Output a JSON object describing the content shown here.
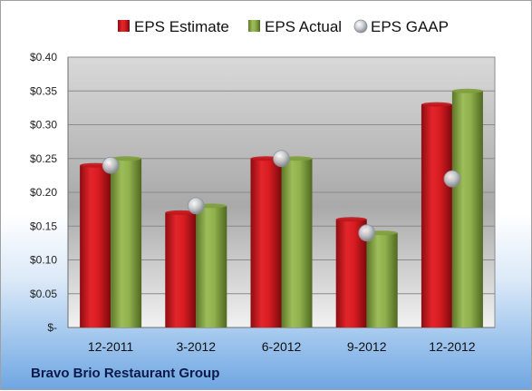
{
  "company": "Bravo Brio Restaurant Group",
  "chart_data": {
    "type": "bar",
    "categories": [
      "12-2011",
      "3-2012",
      "6-2012",
      "9-2012",
      "12-2012"
    ],
    "series": [
      {
        "name": "EPS Estimate",
        "kind": "bar",
        "color": "#c0151a",
        "values": [
          0.24,
          0.17,
          0.25,
          0.16,
          0.33
        ]
      },
      {
        "name": "EPS Actual",
        "kind": "bar",
        "color": "#7e9e3c",
        "values": [
          0.25,
          0.18,
          0.25,
          0.14,
          0.35
        ]
      },
      {
        "name": "EPS GAAP",
        "kind": "marker",
        "color": "#b8bcc4",
        "values": [
          0.24,
          0.18,
          0.25,
          0.14,
          0.22
        ]
      }
    ],
    "ylim": [
      0,
      0.4
    ],
    "yticks": [
      0,
      0.05,
      0.1,
      0.15,
      0.2,
      0.25,
      0.3,
      0.35,
      0.4
    ],
    "ytick_labels": [
      "$-",
      "$0.05",
      "$0.10",
      "$0.15",
      "$0.20",
      "$0.25",
      "$0.30",
      "$0.35",
      "$0.40"
    ],
    "grid": true,
    "legend": "top"
  }
}
